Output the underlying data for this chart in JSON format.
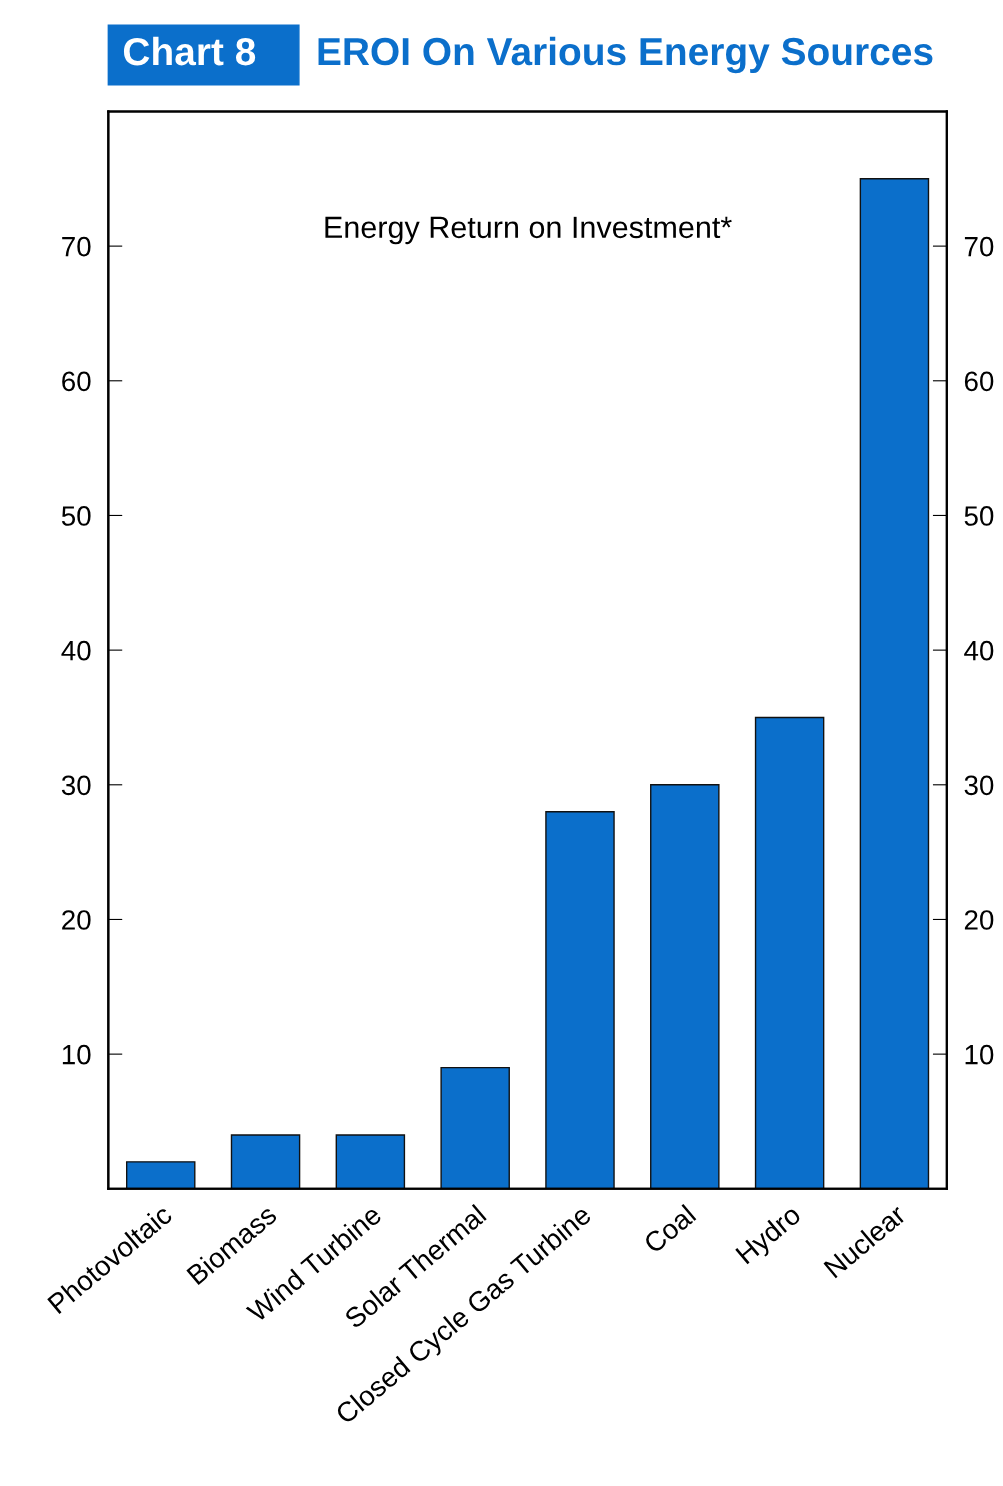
{
  "chart_data": {
    "type": "bar",
    "title": "EROI On Various Energy Sources",
    "subtitle": "Chart 8",
    "annotations": [
      "Energy Return on Investment*"
    ],
    "categories": [
      "Photovoltaic",
      "Biomass",
      "Wind Turbine",
      "Solar Thermal",
      "Closed Cycle Gas Turbine",
      "Coal",
      "Hydro",
      "Nuclear"
    ],
    "values": [
      2,
      4,
      4,
      9,
      28,
      30,
      35,
      75
    ],
    "color": "#0b6fcb",
    "ylim": [
      0,
      80
    ],
    "yticks": [
      10,
      20,
      30,
      40,
      50,
      60,
      70
    ],
    "y2lim": [
      0,
      80
    ],
    "y2ticks": [
      10,
      20,
      30,
      40,
      50,
      60,
      70
    ],
    "grid": false,
    "legend": false
  }
}
